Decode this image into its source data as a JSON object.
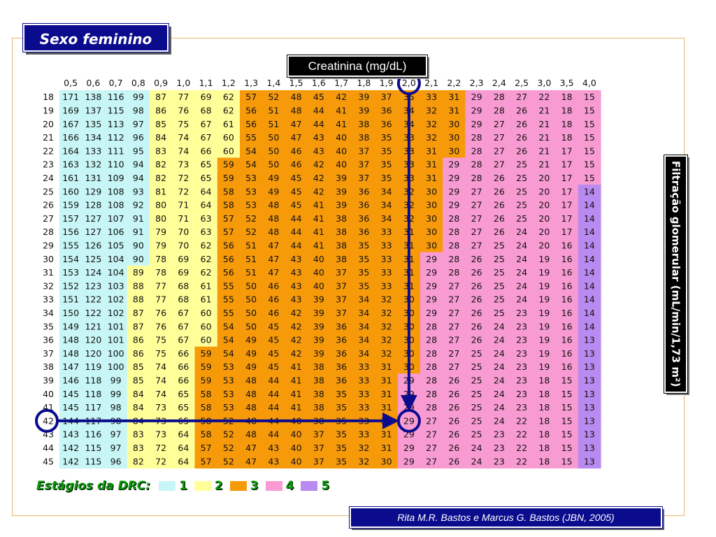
{
  "title": "Sexo feminino",
  "creatinine_label": "Creatinina (mg/dL)",
  "gfr_label": "Filtração glomerular (mL/min/1,73 m²)",
  "source": "Rita M.R. Bastos e Marcus G. Bastos (JBN, 2005)",
  "legend": {
    "title": "Estágios da DRC:",
    "items": [
      {
        "label": "1",
        "color": "#c8f5f5"
      },
      {
        "label": "2",
        "color": "#ffff99"
      },
      {
        "label": "3",
        "color": "#f79a0a"
      },
      {
        "label": "4",
        "color": "#f99bd3"
      },
      {
        "label": "5",
        "color": "#b98af0"
      }
    ]
  },
  "chart_data": {
    "type": "table",
    "x_label": "Creatinina (mg/dL)",
    "y_label": "Filtração glomerular (mL/min/1,73 m²)",
    "columns": [
      "0,5",
      "0,6",
      "0,7",
      "0,8",
      "0,9",
      "1,0",
      "1,1",
      "1,2",
      "1,3",
      "1,4",
      "1,5",
      "1,6",
      "1,7",
      "1,8",
      "1,9",
      "2,0",
      "2,1",
      "2,2",
      "2,3",
      "2,4",
      "2,5",
      "3,0",
      "3,5",
      "4,0"
    ],
    "rows": [
      18,
      19,
      20,
      21,
      22,
      23,
      24,
      25,
      26,
      27,
      28,
      29,
      30,
      31,
      32,
      33,
      34,
      35,
      36,
      37,
      38,
      39,
      40,
      41,
      42,
      43,
      44,
      45
    ],
    "values": [
      [
        171,
        138,
        116,
        99,
        87,
        77,
        69,
        62,
        57,
        52,
        48,
        45,
        42,
        39,
        37,
        35,
        33,
        31,
        29,
        28,
        27,
        22,
        18,
        15
      ],
      [
        169,
        137,
        115,
        98,
        86,
        76,
        68,
        62,
        56,
        51,
        48,
        44,
        41,
        39,
        36,
        34,
        32,
        31,
        29,
        28,
        26,
        21,
        18,
        15
      ],
      [
        167,
        135,
        113,
        97,
        85,
        75,
        67,
        61,
        56,
        51,
        47,
        44,
        41,
        38,
        36,
        34,
        32,
        30,
        29,
        27,
        26,
        21,
        18,
        15
      ],
      [
        166,
        134,
        112,
        96,
        84,
        74,
        67,
        60,
        55,
        50,
        47,
        43,
        40,
        38,
        35,
        33,
        32,
        30,
        28,
        27,
        26,
        21,
        18,
        15
      ],
      [
        164,
        133,
        111,
        95,
        83,
        74,
        66,
        60,
        54,
        50,
        46,
        43,
        40,
        37,
        35,
        33,
        31,
        30,
        28,
        27,
        26,
        21,
        17,
        15
      ],
      [
        163,
        132,
        110,
        94,
        82,
        73,
        65,
        59,
        54,
        50,
        46,
        42,
        40,
        37,
        35,
        33,
        31,
        29,
        28,
        27,
        25,
        21,
        17,
        15
      ],
      [
        161,
        131,
        109,
        94,
        82,
        72,
        65,
        59,
        53,
        49,
        45,
        42,
        39,
        37,
        35,
        33,
        31,
        29,
        28,
        26,
        25,
        20,
        17,
        15
      ],
      [
        160,
        129,
        108,
        93,
        81,
        72,
        64,
        58,
        53,
        49,
        45,
        42,
        39,
        36,
        34,
        32,
        30,
        29,
        27,
        26,
        25,
        20,
        17,
        14
      ],
      [
        159,
        128,
        108,
        92,
        80,
        71,
        64,
        58,
        53,
        48,
        45,
        41,
        39,
        36,
        34,
        32,
        30,
        29,
        27,
        26,
        25,
        20,
        17,
        14
      ],
      [
        157,
        127,
        107,
        91,
        80,
        71,
        63,
        57,
        52,
        48,
        44,
        41,
        38,
        36,
        34,
        32,
        30,
        28,
        27,
        26,
        25,
        20,
        17,
        14
      ],
      [
        156,
        127,
        106,
        91,
        79,
        70,
        63,
        57,
        52,
        48,
        44,
        41,
        38,
        36,
        33,
        31,
        30,
        28,
        27,
        26,
        24,
        20,
        17,
        14
      ],
      [
        155,
        126,
        105,
        90,
        79,
        70,
        62,
        56,
        51,
        47,
        44,
        41,
        38,
        35,
        33,
        31,
        30,
        28,
        27,
        25,
        24,
        20,
        16,
        14
      ],
      [
        154,
        125,
        104,
        90,
        78,
        69,
        62,
        56,
        51,
        47,
        43,
        40,
        38,
        35,
        33,
        31,
        29,
        28,
        26,
        25,
        24,
        19,
        16,
        14
      ],
      [
        153,
        124,
        104,
        89,
        78,
        69,
        62,
        56,
        51,
        47,
        43,
        40,
        37,
        35,
        33,
        31,
        29,
        28,
        26,
        25,
        24,
        19,
        16,
        14
      ],
      [
        152,
        123,
        103,
        88,
        77,
        68,
        61,
        55,
        50,
        46,
        43,
        40,
        37,
        35,
        33,
        31,
        29,
        27,
        26,
        25,
        24,
        19,
        16,
        14
      ],
      [
        151,
        122,
        102,
        88,
        77,
        68,
        61,
        55,
        50,
        46,
        43,
        39,
        37,
        34,
        32,
        30,
        29,
        27,
        26,
        25,
        24,
        19,
        16,
        14
      ],
      [
        150,
        122,
        102,
        87,
        76,
        67,
        60,
        55,
        50,
        46,
        42,
        39,
        37,
        34,
        32,
        30,
        29,
        27,
        26,
        25,
        23,
        19,
        16,
        14
      ],
      [
        149,
        121,
        101,
        87,
        76,
        67,
        60,
        54,
        50,
        45,
        42,
        39,
        36,
        34,
        32,
        30,
        28,
        27,
        26,
        24,
        23,
        19,
        16,
        14
      ],
      [
        148,
        120,
        101,
        86,
        75,
        67,
        60,
        54,
        49,
        45,
        42,
        39,
        36,
        34,
        32,
        30,
        28,
        27,
        26,
        24,
        23,
        19,
        16,
        13
      ],
      [
        148,
        120,
        100,
        86,
        75,
        66,
        59,
        54,
        49,
        45,
        42,
        39,
        36,
        34,
        32,
        30,
        28,
        27,
        25,
        24,
        23,
        19,
        16,
        13
      ],
      [
        147,
        119,
        100,
        85,
        74,
        66,
        59,
        53,
        49,
        45,
        41,
        38,
        36,
        33,
        31,
        30,
        28,
        27,
        25,
        24,
        23,
        19,
        16,
        13
      ],
      [
        146,
        118,
        99,
        85,
        74,
        66,
        59,
        53,
        48,
        44,
        41,
        38,
        36,
        33,
        31,
        29,
        28,
        26,
        25,
        24,
        23,
        18,
        15,
        13
      ],
      [
        145,
        118,
        99,
        84,
        74,
        65,
        58,
        53,
        48,
        44,
        41,
        38,
        35,
        33,
        31,
        29,
        28,
        26,
        25,
        24,
        23,
        18,
        15,
        13
      ],
      [
        145,
        117,
        98,
        84,
        73,
        65,
        58,
        53,
        48,
        44,
        41,
        38,
        35,
        33,
        31,
        29,
        28,
        26,
        25,
        24,
        23,
        18,
        15,
        13
      ],
      [
        144,
        117,
        98,
        84,
        73,
        65,
        58,
        52,
        48,
        44,
        40,
        38,
        35,
        33,
        31,
        29,
        27,
        26,
        25,
        24,
        22,
        18,
        15,
        13
      ],
      [
        143,
        116,
        97,
        83,
        73,
        64,
        58,
        52,
        48,
        44,
        40,
        37,
        35,
        33,
        31,
        29,
        27,
        26,
        25,
        23,
        22,
        18,
        15,
        13
      ],
      [
        142,
        115,
        97,
        83,
        72,
        64,
        57,
        52,
        47,
        43,
        40,
        37,
        35,
        32,
        31,
        29,
        27,
        26,
        24,
        23,
        22,
        18,
        15,
        13
      ],
      [
        142,
        115,
        96,
        82,
        72,
        64,
        57,
        52,
        47,
        43,
        40,
        37,
        35,
        32,
        30,
        29,
        27,
        26,
        24,
        23,
        22,
        18,
        15,
        13
      ]
    ],
    "highlight": {
      "row": 42,
      "column": "2,0",
      "value": 29
    },
    "stage_colors": {
      "1": "#c8f5f5",
      "2": "#ffff99",
      "3": "#f79a0a",
      "4": "#f99bd3",
      "5": "#b98af0"
    },
    "arrow_color": "#0b0b8e"
  }
}
